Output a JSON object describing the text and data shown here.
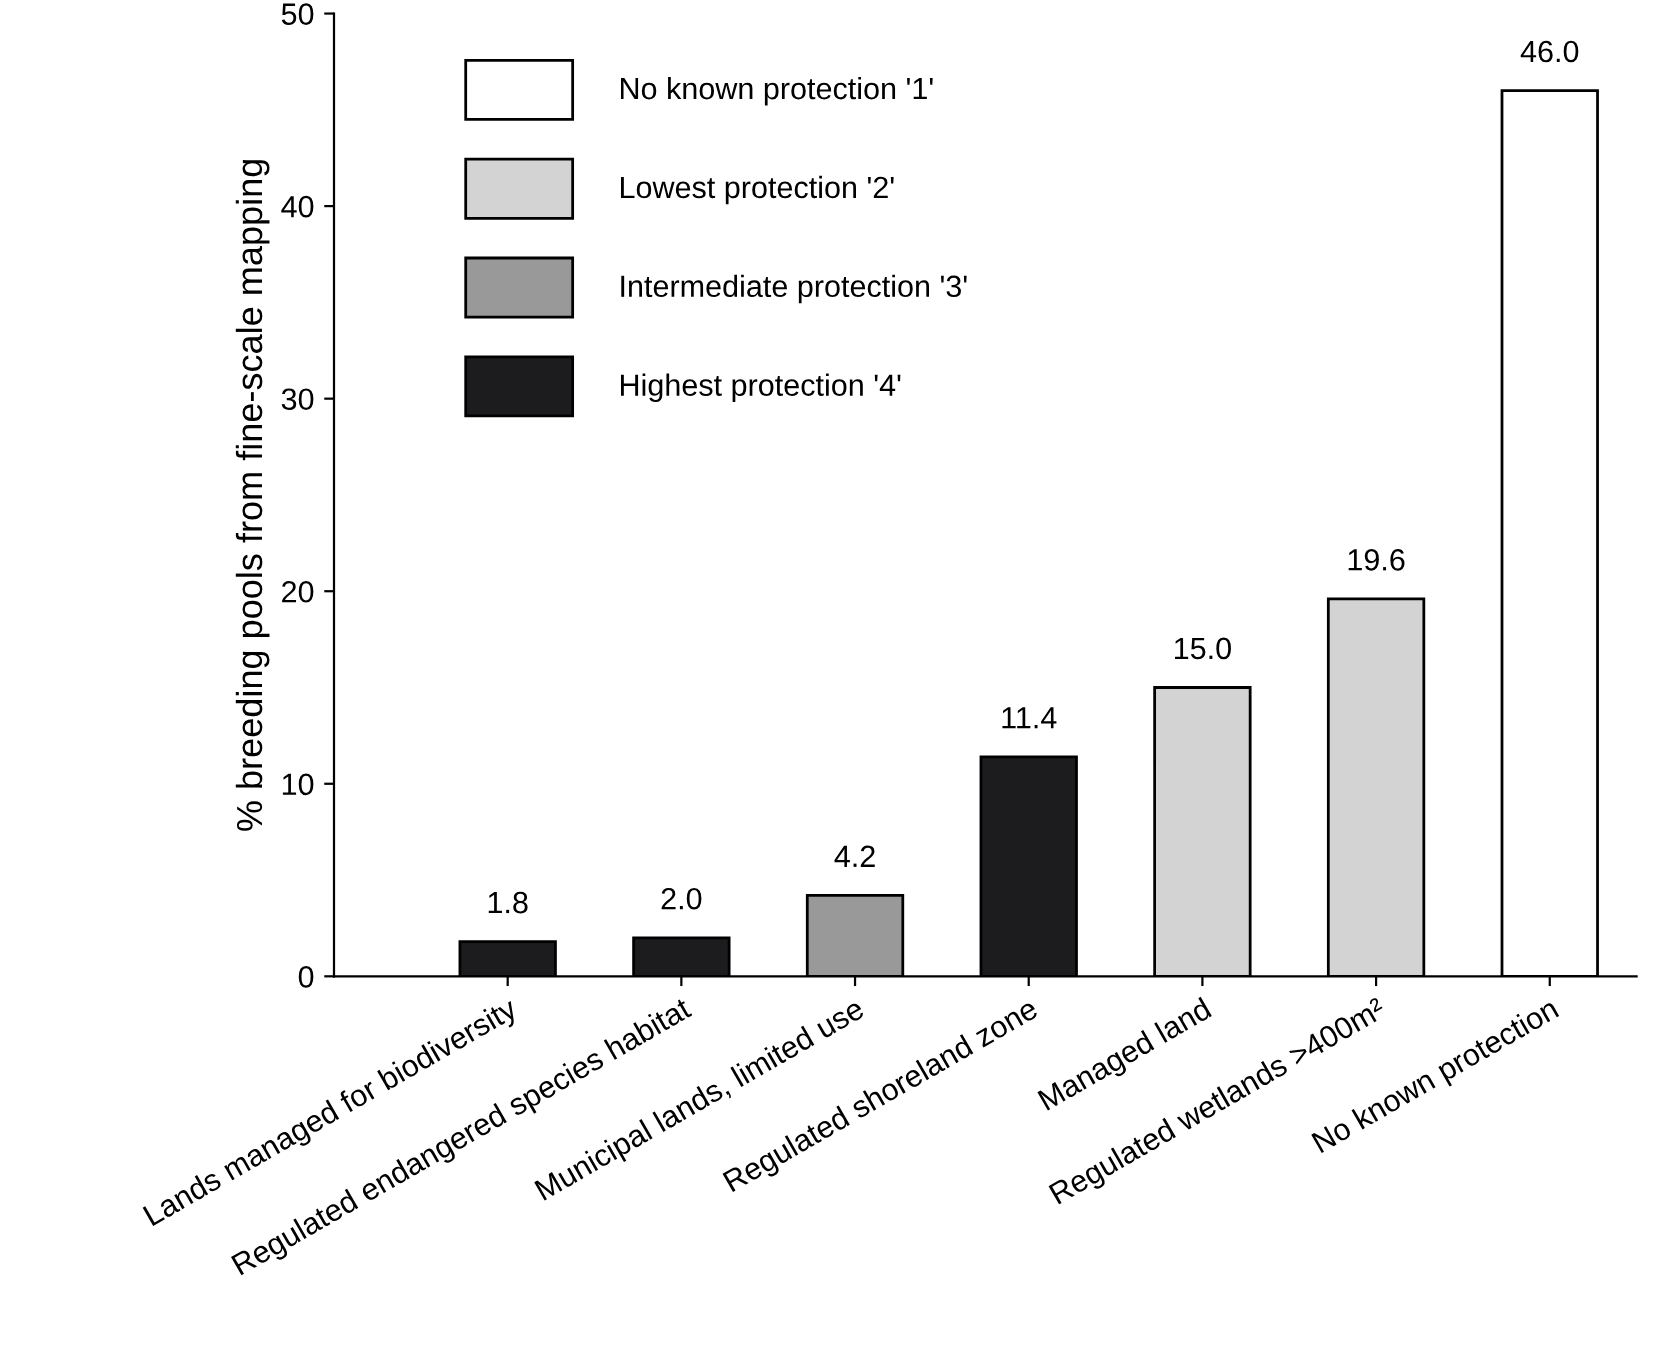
{
  "chart_data": {
    "type": "bar",
    "ylabel": "% breeding pools from fine-scale mapping",
    "categories": [
      "Lands managed for biodiversity",
      "Regulated endangered species habitat",
      "Municipal lands, limited use",
      "Regulated shoreland zone",
      "Managed land",
      "Regulated wetlands >400m²",
      "No known protection"
    ],
    "stacked": true,
    "series": [
      {
        "name": "No known protection '1'",
        "color": "#ffffff",
        "values": [
          null,
          null,
          null,
          null,
          null,
          null,
          46.0
        ],
        "value_labels": [
          null,
          null,
          null,
          null,
          null,
          null,
          "46.0"
        ]
      },
      {
        "name": "Lowest protection '2'",
        "color": "#d3d3d3",
        "values": [
          null,
          null,
          null,
          null,
          15.0,
          19.6,
          null
        ],
        "value_labels": [
          null,
          null,
          null,
          null,
          "15.0",
          "19.6",
          null
        ]
      },
      {
        "name": "Intermediate protection '3'",
        "color": "#999999",
        "values": [
          null,
          null,
          4.2,
          null,
          null,
          null,
          null
        ],
        "value_labels": [
          null,
          null,
          "4.2",
          null,
          null,
          null,
          null
        ]
      },
      {
        "name": "Highest protection '4'",
        "color": "#1c1c1e",
        "values": [
          1.8,
          2.0,
          null,
          11.4,
          null,
          null,
          null
        ],
        "value_labels": [
          "1.8",
          "2.0",
          null,
          "11.4",
          null,
          null,
          null
        ]
      }
    ],
    "ylim": [
      0,
      50
    ],
    "yticks": [
      0,
      10,
      20,
      30,
      40,
      50
    ],
    "grid": false,
    "legend": "top left"
  }
}
